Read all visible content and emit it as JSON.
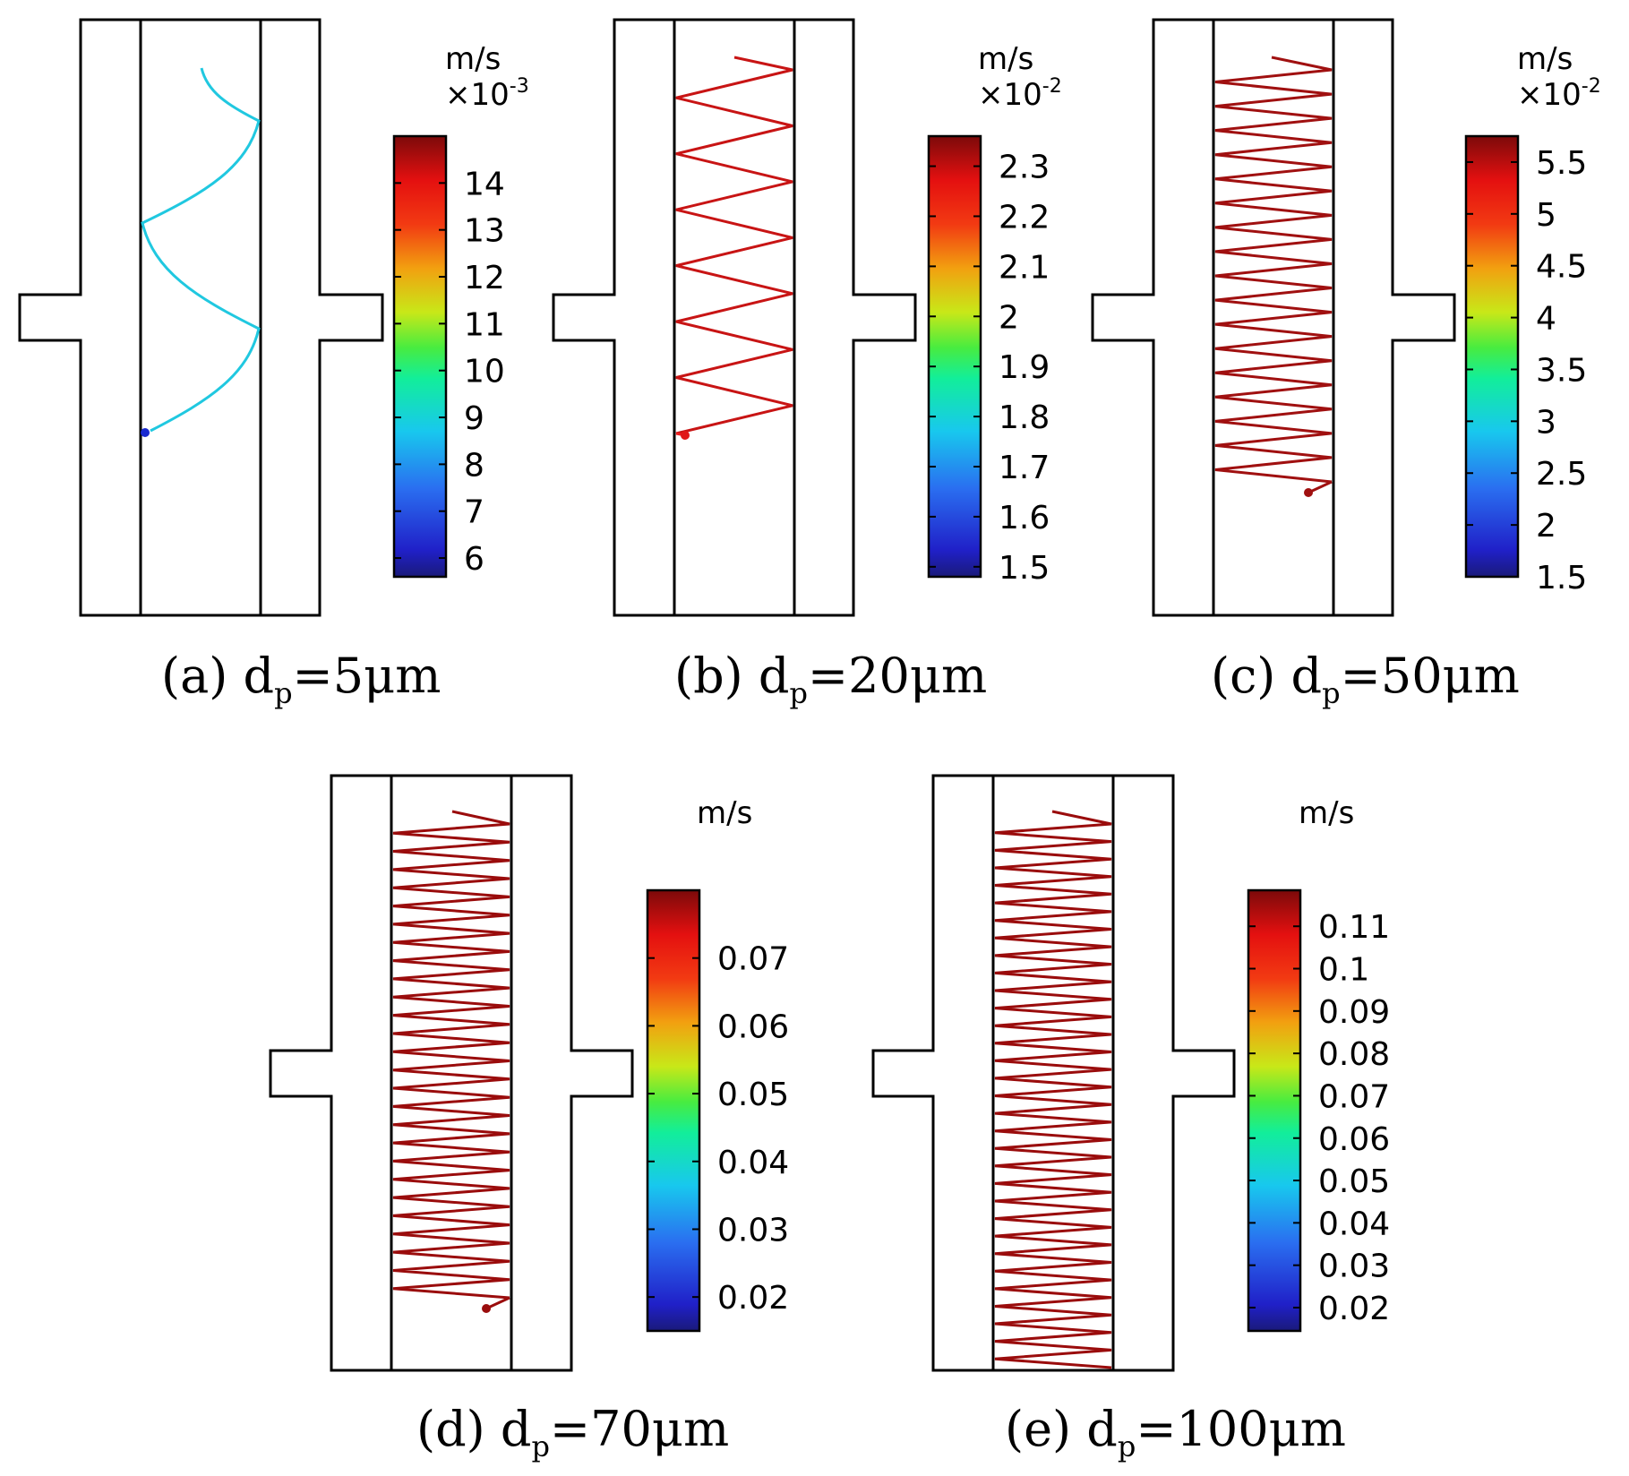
{
  "figure": {
    "panels": [
      {
        "id": "a",
        "caption": {
          "prefix": "(a) d",
          "sub": "p",
          "suffix": "=5μm"
        },
        "colorbar": {
          "unit": "m/s",
          "scale_base": "×10",
          "scale_exp": "-3",
          "min": 5.6,
          "max": 15.0,
          "ticks": [
            {
              "v": 14,
              "label": "14"
            },
            {
              "v": 13,
              "label": "13"
            },
            {
              "v": 12,
              "label": "12"
            },
            {
              "v": 11,
              "label": "11"
            },
            {
              "v": 10,
              "label": "10"
            },
            {
              "v": 9,
              "label": "9"
            },
            {
              "v": 8,
              "label": "8"
            },
            {
              "v": 7,
              "label": "7"
            },
            {
              "v": 6,
              "label": "6"
            }
          ]
        },
        "trajectory": {
          "color": "#20c8e0",
          "end_color": "#2233c8",
          "marker_color": "#1a2ad0"
        }
      },
      {
        "id": "b",
        "caption": {
          "prefix": "(b) d",
          "sub": "p",
          "suffix": "=20μm"
        },
        "colorbar": {
          "unit": "m/s",
          "scale_base": "×10",
          "scale_exp": "-2",
          "min": 1.48,
          "max": 2.36,
          "ticks": [
            {
              "v": 2.3,
              "label": "2.3"
            },
            {
              "v": 2.2,
              "label": "2.2"
            },
            {
              "v": 2.1,
              "label": "2.1"
            },
            {
              "v": 2.0,
              "label": "2"
            },
            {
              "v": 1.9,
              "label": "1.9"
            },
            {
              "v": 1.8,
              "label": "1.8"
            },
            {
              "v": 1.7,
              "label": "1.7"
            },
            {
              "v": 1.6,
              "label": "1.6"
            },
            {
              "v": 1.5,
              "label": "1.5"
            }
          ]
        },
        "trajectory": {
          "color": "#c81414",
          "end_color": "#f02020",
          "marker_color": "#e01818"
        }
      },
      {
        "id": "c",
        "caption": {
          "prefix": "(c) d",
          "sub": "p",
          "suffix": "=50μm"
        },
        "colorbar": {
          "unit": "m/s",
          "scale_base": "×10",
          "scale_exp": "-2",
          "min": 1.5,
          "max": 5.75,
          "ticks": [
            {
              "v": 5.5,
              "label": "5.5"
            },
            {
              "v": 5.0,
              "label": "5"
            },
            {
              "v": 4.5,
              "label": "4.5"
            },
            {
              "v": 4.0,
              "label": "4"
            },
            {
              "v": 3.5,
              "label": "3.5"
            },
            {
              "v": 3.0,
              "label": "3"
            },
            {
              "v": 2.5,
              "label": "2.5"
            },
            {
              "v": 2.0,
              "label": "2"
            },
            {
              "v": 1.5,
              "label": "1.5"
            }
          ]
        },
        "trajectory": {
          "color": "#a01010",
          "end_color": "#a01010",
          "marker_color": "#a01010"
        }
      },
      {
        "id": "d",
        "caption": {
          "prefix": "(d) d",
          "sub": "p",
          "suffix": "=70μm"
        },
        "colorbar": {
          "unit": "m/s",
          "scale_base": "",
          "scale_exp": "",
          "min": 0.015,
          "max": 0.08,
          "ticks": [
            {
              "v": 0.07,
              "label": "0.07"
            },
            {
              "v": 0.06,
              "label": "0.06"
            },
            {
              "v": 0.05,
              "label": "0.05"
            },
            {
              "v": 0.04,
              "label": "0.04"
            },
            {
              "v": 0.03,
              "label": "0.03"
            },
            {
              "v": 0.02,
              "label": "0.02"
            }
          ]
        },
        "trajectory": {
          "color": "#9a0c0c",
          "end_color": "#9a0c0c",
          "marker_color": "#9a0c0c"
        }
      },
      {
        "id": "e",
        "caption": {
          "prefix": "(e) d",
          "sub": "p",
          "suffix": "=100μm"
        },
        "colorbar": {
          "unit": "m/s",
          "scale_base": "",
          "scale_exp": "",
          "min": 0.0145,
          "max": 0.1185,
          "ticks": [
            {
              "v": 0.11,
              "label": "0.11"
            },
            {
              "v": 0.1,
              "label": "0.1"
            },
            {
              "v": 0.09,
              "label": "0.09"
            },
            {
              "v": 0.08,
              "label": "0.08"
            },
            {
              "v": 0.07,
              "label": "0.07"
            },
            {
              "v": 0.06,
              "label": "0.06"
            },
            {
              "v": 0.05,
              "label": "0.05"
            },
            {
              "v": 0.04,
              "label": "0.04"
            },
            {
              "v": 0.03,
              "label": "0.03"
            },
            {
              "v": 0.02,
              "label": "0.02"
            }
          ]
        },
        "trajectory": {
          "color": "#9a0c0c",
          "end_color": "#9a0c0c",
          "marker_color": "#9a0c0c"
        }
      }
    ]
  }
}
